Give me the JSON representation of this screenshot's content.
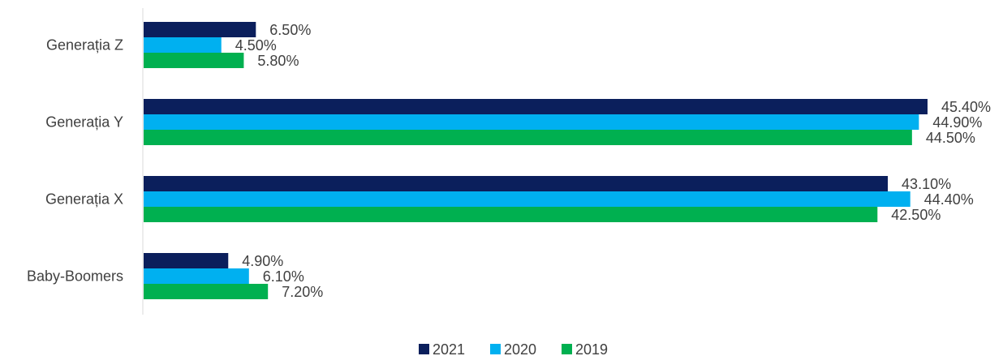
{
  "chart_data": {
    "type": "bar",
    "orientation": "horizontal",
    "categories": [
      "Generația Z",
      "Generația Y",
      "Generația X",
      "Baby-Boomers"
    ],
    "series": [
      {
        "name": "2021",
        "color": "#0b1f5c",
        "values": [
          6.5,
          45.4,
          43.1,
          4.9
        ],
        "labels": [
          "6.50%",
          "45.40%",
          "43.10%",
          "4.90%"
        ]
      },
      {
        "name": "2020",
        "color": "#00b0f0",
        "values": [
          4.5,
          44.9,
          44.4,
          6.1
        ],
        "labels": [
          "4.50%",
          "44.90%",
          "44.40%",
          "6.10%"
        ]
      },
      {
        "name": "2019",
        "color": "#00b050",
        "values": [
          5.8,
          44.5,
          42.5,
          7.2
        ],
        "labels": [
          "5.80%",
          "44.50%",
          "42.50%",
          "7.20%"
        ]
      }
    ],
    "xlim": [
      0,
      45.4
    ],
    "grid": false,
    "legend_position": "bottom",
    "axis_color": "#d9d9d9"
  }
}
